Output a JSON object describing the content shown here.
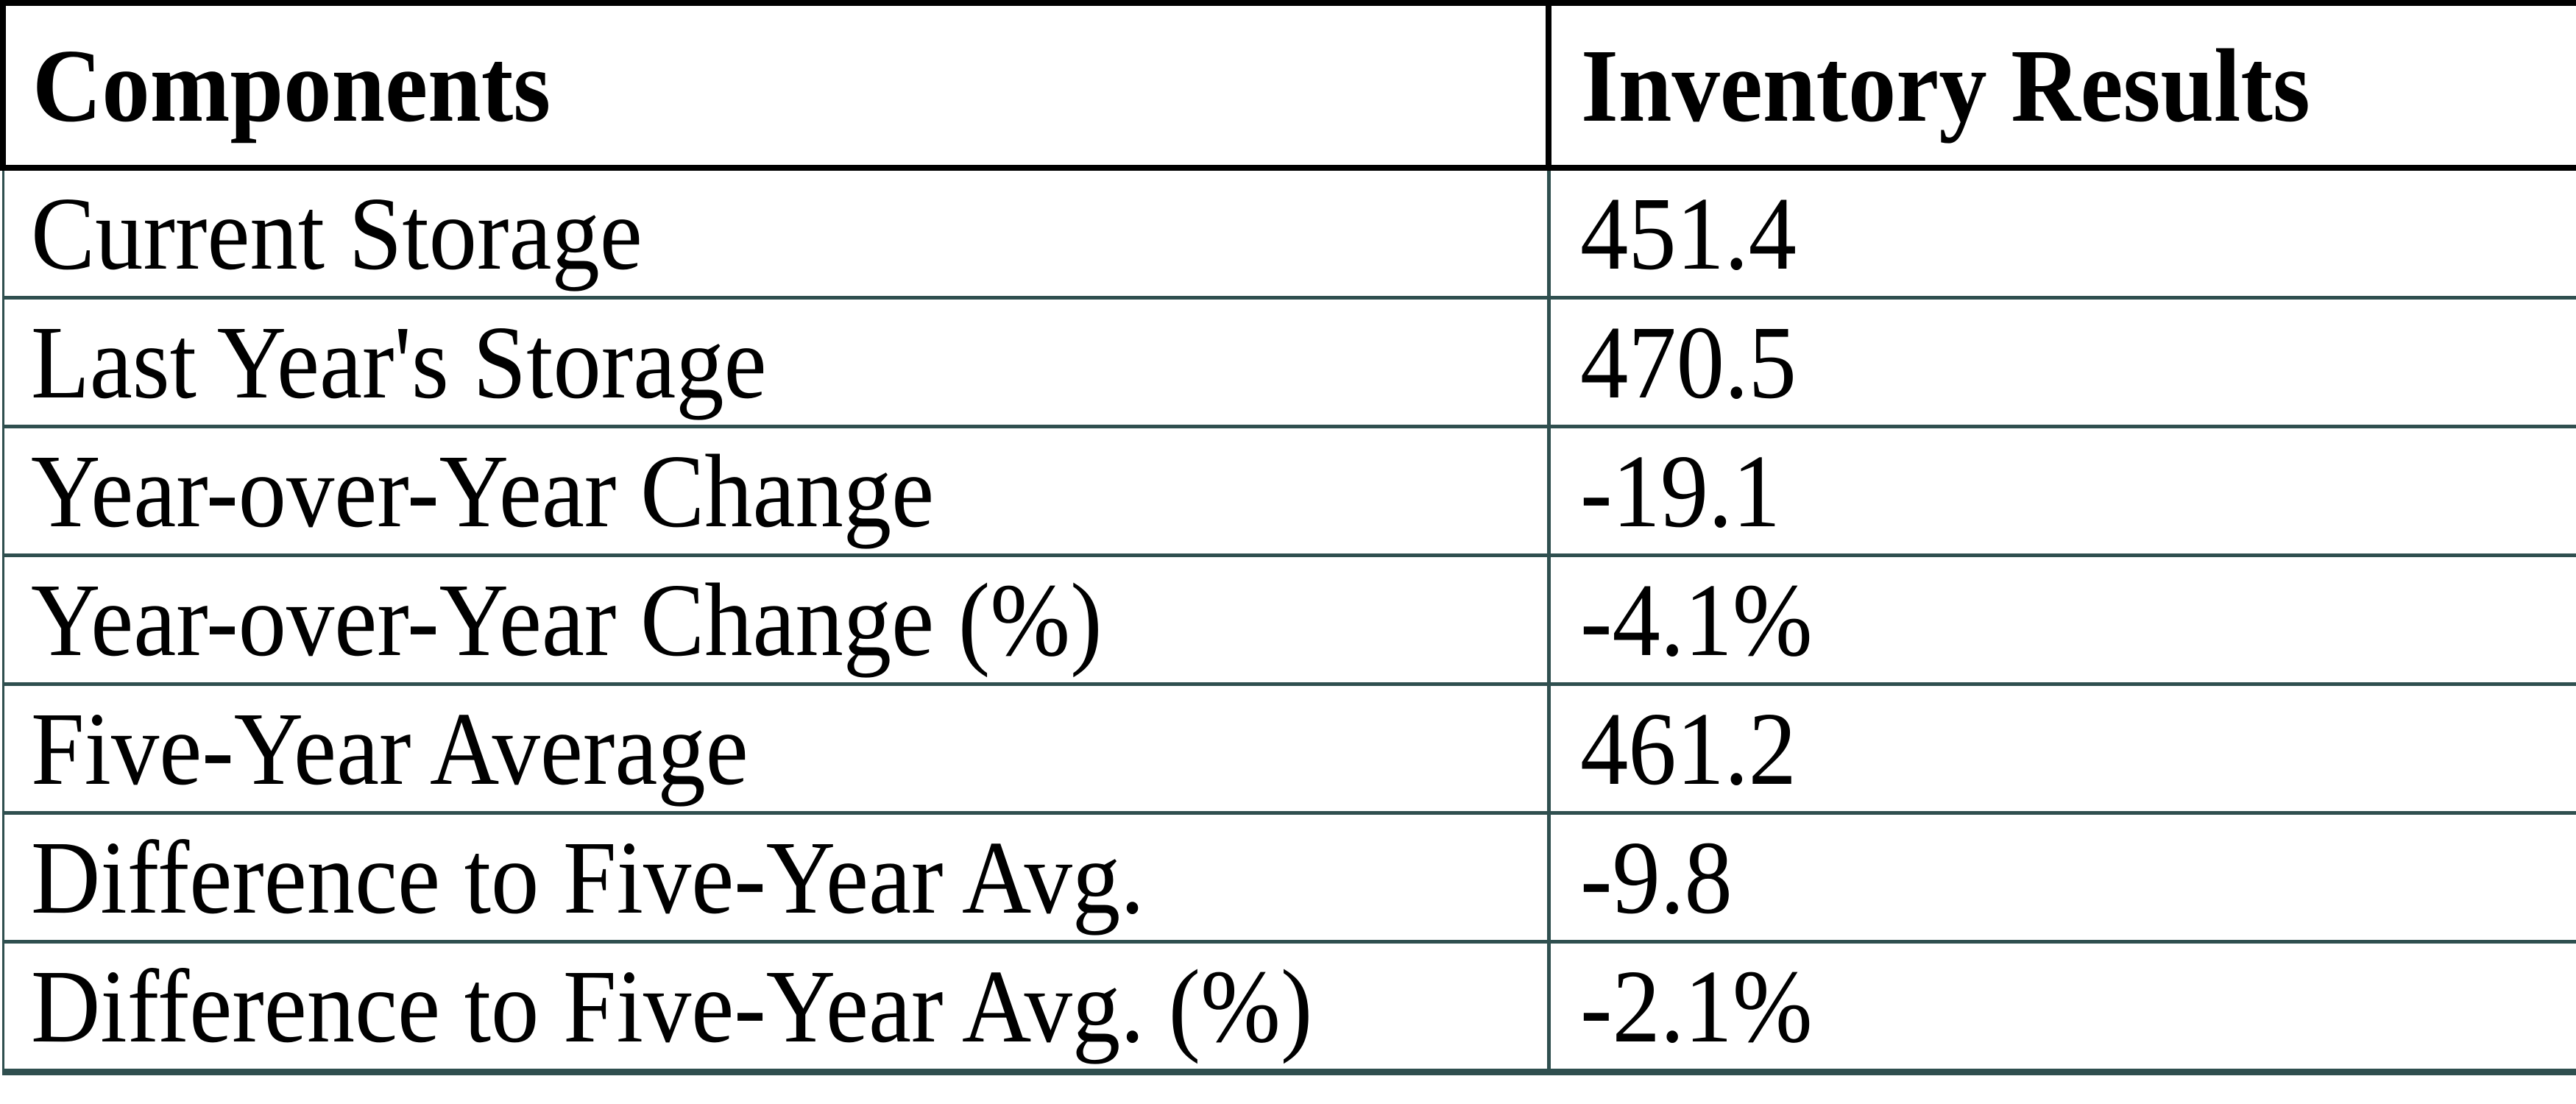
{
  "table": {
    "columns": [
      {
        "label": "Components"
      },
      {
        "label": "Inventory Results"
      }
    ],
    "rows": [
      {
        "label": "Current Storage",
        "value": "451.4"
      },
      {
        "label": "Last Year's Storage",
        "value": "470.5"
      },
      {
        "label": "Year-over-Year Change",
        "value": "-19.1"
      },
      {
        "label": "Year-over-Year Change (%)",
        "value": "-4.1%"
      },
      {
        "label": "Five-Year Average",
        "value": "461.2"
      },
      {
        "label": "Difference to Five-Year Avg.",
        "value": "-9.8"
      },
      {
        "label": "Difference to Five-Year Avg. (%)",
        "value": "-2.1%"
      }
    ],
    "colors": {
      "header_border": "#000000",
      "cell_border": "#2F4F4F",
      "text": "#000000",
      "background": "#FFFFFF"
    }
  },
  "chart_data": {
    "type": "table",
    "title": "",
    "columns": [
      "Components",
      "Inventory Results"
    ],
    "rows": [
      [
        "Current Storage",
        451.4
      ],
      [
        "Last Year's Storage",
        470.5
      ],
      [
        "Year-over-Year Change",
        -19.1
      ],
      [
        "Year-over-Year Change (%)",
        "-4.1%"
      ],
      [
        "Five-Year Average",
        461.2
      ],
      [
        "Difference to Five-Year Avg.",
        -9.8
      ],
      [
        "Difference to Five-Year Avg. (%)",
        "-2.1%"
      ]
    ]
  }
}
